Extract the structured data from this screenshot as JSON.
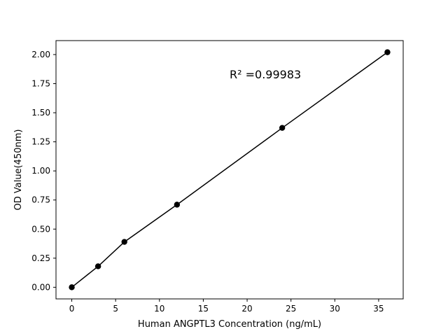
{
  "chart_data": {
    "type": "scatter",
    "title": "",
    "xlabel": "Human ANGPTL3 Concentration (ng/mL)",
    "ylabel": "OD Value(450nm)",
    "xlim": [
      -1.8,
      37.8
    ],
    "ylim": [
      -0.1,
      2.12
    ],
    "xticks": [
      0,
      5,
      10,
      15,
      20,
      25,
      30,
      35
    ],
    "xtick_labels": [
      "0",
      "5",
      "10",
      "15",
      "20",
      "25",
      "30",
      "35"
    ],
    "yticks": [
      0.0,
      0.25,
      0.5,
      0.75,
      1.0,
      1.25,
      1.5,
      1.75,
      2.0
    ],
    "ytick_labels": [
      "0.00",
      "0.25",
      "0.50",
      "0.75",
      "1.00",
      "1.25",
      "1.50",
      "1.75",
      "2.00"
    ],
    "grid": false,
    "series": [
      {
        "x": [
          0,
          3,
          6,
          12,
          24,
          36
        ],
        "y": [
          0.0,
          0.18,
          0.39,
          0.71,
          1.37,
          2.02
        ],
        "color": "#000000",
        "marker": "circle",
        "line": true
      }
    ],
    "annotations": [
      {
        "text": "R² =0.99983",
        "x": 18,
        "y": 1.83
      }
    ]
  }
}
